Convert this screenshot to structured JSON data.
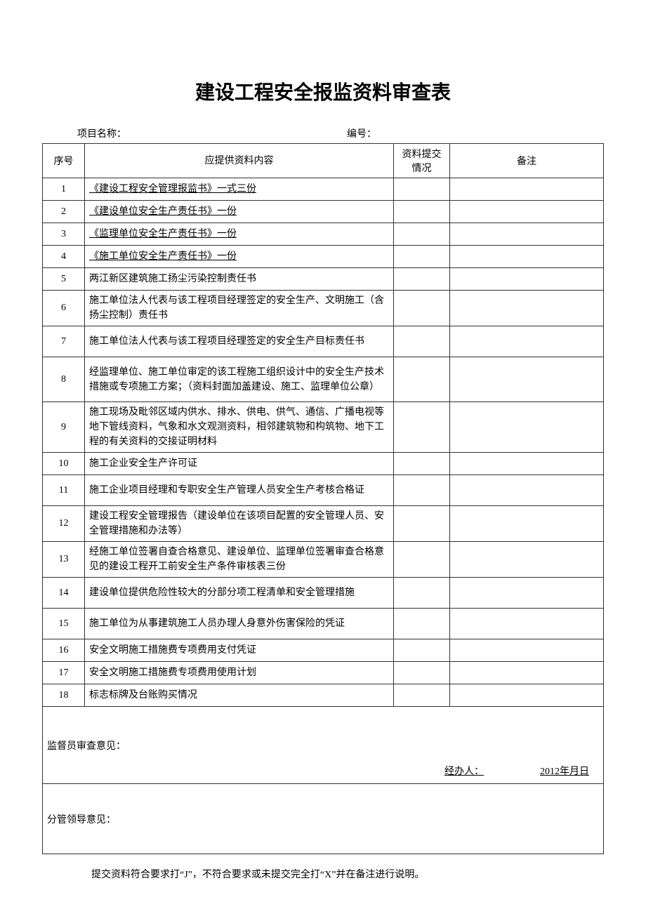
{
  "title": "建设工程安全报监资料审查表",
  "meta": {
    "project_label": "项目名称：",
    "project_value": "",
    "number_label": "编号：",
    "number_value": ""
  },
  "headers": {
    "seq": "序号",
    "content": "应提供资料内容",
    "submit": "资料提交情况",
    "remark": "备注"
  },
  "rows": [
    {
      "seq": "1",
      "content": "《建设工程安全管理报监书》一式三份",
      "underline": true,
      "indent": true,
      "height": "row-h-1"
    },
    {
      "seq": "2",
      "content": "《建设单位安全生产责任书》一份",
      "underline": true,
      "indent": true,
      "height": "row-h-1"
    },
    {
      "seq": "3",
      "content": "《监理单位安全生产责任书》一份",
      "underline": true,
      "indent": true,
      "height": "row-h-1"
    },
    {
      "seq": "4",
      "content": "《施工单位安全生产责任书》一份",
      "underline": true,
      "indent": true,
      "height": "row-h-1"
    },
    {
      "seq": "5",
      "content": "两江新区建筑施工扬尘污染控制责任书",
      "height": "row-h-1"
    },
    {
      "seq": "6",
      "content": "施工单位法人代表与该工程项目经理签定的安全生产、文明施工（含扬尘控制）责任书",
      "height": "row-h-2"
    },
    {
      "seq": "7",
      "content": "施工单位法人代表与该工程项目经理签定的安全生产目标责任书",
      "height": "row-h-2"
    },
    {
      "seq": "8",
      "content": "经监理单位、施工单位审定的该工程施工组织设计中的安全生产技术措施或专项施工方案；（资料封面加盖建设、施工、监理单位公章）",
      "height": "row-h-3"
    },
    {
      "seq": "9",
      "content": "施工现场及毗邻区域内供水、排水、供电、供气、通信、广播电视等地下管线资料，气象和水文观测资料，相邻建筑物和构筑物、地下工程的有关资料的交接证明材料",
      "height": "row-h-3"
    },
    {
      "seq": "10",
      "content": "施工企业安全生产许可证",
      "height": "row-h-1"
    },
    {
      "seq": "11",
      "content": "施工企业项目经理和专职安全生产管理人员安全生产考核合格证",
      "height": "row-h-2"
    },
    {
      "seq": "12",
      "content": "建设工程安全管理报告（建设单位在该项目配置的安全管理人员、安全管理措施和办法等）",
      "height": "row-h-2"
    },
    {
      "seq": "13",
      "content": "经施工单位签署自查合格意见、建设单位、监理单位签署审查合格意见的建设工程开工前安全生产条件审核表三份",
      "height": "row-h-2"
    },
    {
      "seq": "14",
      "content": "建设单位提供危险性较大的分部分项工程清单和安全管理措施",
      "height": "row-h-2"
    },
    {
      "seq": "15",
      "content": "施工单位为从事建筑施工人员办理人身意外伤害保险的凭证",
      "height": "row-h-2"
    },
    {
      "seq": "16",
      "content": "安全文明施工措施费专项费用支付凭证",
      "height": "row-h-1"
    },
    {
      "seq": "17",
      "content": "安全文明施工措施费专项费用使用计划",
      "height": "row-h-1"
    },
    {
      "seq": "18",
      "content": "标志标牌及台账购买情况",
      "height": "row-h-1"
    }
  ],
  "supervisor_opinion": {
    "label": "监督员审查意见：",
    "handler_label": "经办人：",
    "date": "2012年月日"
  },
  "leader_opinion": {
    "label": "分管领导意见："
  },
  "footnote": "提交资料符合要求打“J”，不符合要求或未提交完全打“X”并在备注进行说明。"
}
